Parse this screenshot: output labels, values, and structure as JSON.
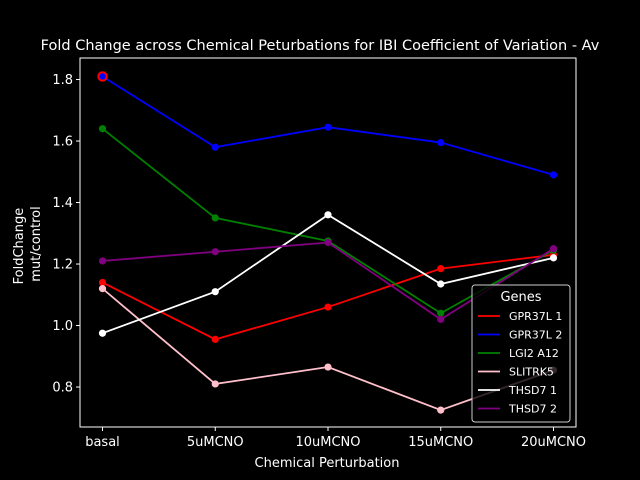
{
  "chart_data": {
    "type": "line",
    "title": "Fold Change across Chemical Peturbations for IBI Coefficient of Variation - Av",
    "xlabel": "Chemical Perturbation",
    "ylabel_lines": [
      "FoldChange",
      "mut/control"
    ],
    "categories": [
      "basal",
      "5uMCNO",
      "10uMCNO",
      "15uMCNO",
      "20uMCNO"
    ],
    "ylim": [
      0.67,
      1.87
    ],
    "yticks": [
      0.8,
      1.0,
      1.2,
      1.4,
      1.6,
      1.8
    ],
    "ytick_labels": [
      "0.8",
      "1.0",
      "1.2",
      "1.4",
      "1.6",
      "1.8"
    ],
    "grid": false,
    "legend": {
      "title": "Genes",
      "position": "lower-right"
    },
    "highlight": {
      "series": "GPR37L 2",
      "category": "basal",
      "color": "#ff0000"
    },
    "series": [
      {
        "name": "GPR37L 1",
        "color": "#ff0000",
        "values": [
          1.14,
          0.955,
          1.06,
          1.185,
          1.23
        ]
      },
      {
        "name": "GPR37L 2",
        "color": "#0000ff",
        "values": [
          1.81,
          1.58,
          1.645,
          1.595,
          1.49
        ]
      },
      {
        "name": "LGI2 A12",
        "color": "#008000",
        "values": [
          1.64,
          1.35,
          1.275,
          1.04,
          1.245
        ]
      },
      {
        "name": "SLITRK5",
        "color": "#ffc0cb",
        "values": [
          1.12,
          0.81,
          0.865,
          0.725,
          0.855
        ]
      },
      {
        "name": "THSD7 1",
        "color": "#ffffff",
        "values": [
          0.975,
          1.11,
          1.36,
          1.135,
          1.22
        ]
      },
      {
        "name": "THSD7 2",
        "color": "#800080",
        "values": [
          1.21,
          1.24,
          1.27,
          1.02,
          1.25
        ]
      }
    ]
  }
}
